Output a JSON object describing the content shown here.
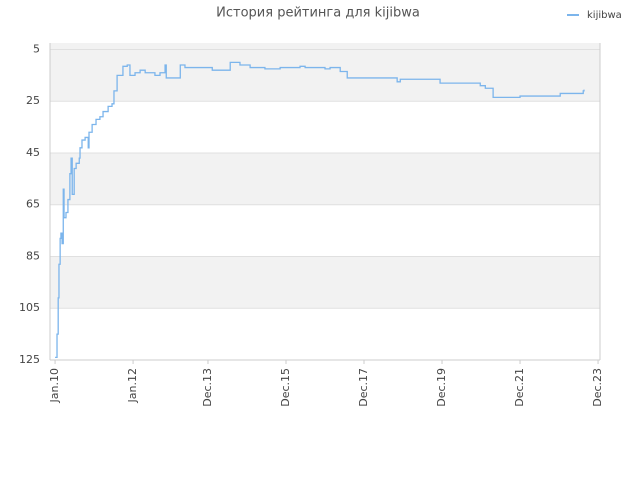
{
  "chart_data": {
    "type": "line",
    "title": "История рейтинга для kijibwa",
    "drawstyle": "steps-post",
    "grid": true,
    "legend": "upper right",
    "x": [
      2010.0,
      2010.05,
      2010.08,
      2010.1,
      2010.13,
      2010.15,
      2010.18,
      2010.21,
      2010.23,
      2010.28,
      2010.33,
      2010.38,
      2010.41,
      2010.44,
      2010.49,
      2010.54,
      2010.62,
      2010.64,
      2010.69,
      2010.77,
      2010.85,
      2010.87,
      2010.95,
      2011.05,
      2011.15,
      2011.23,
      2011.36,
      2011.46,
      2011.51,
      2011.59,
      2011.67,
      2011.74,
      2011.85,
      2011.92,
      2012.05,
      2012.18,
      2012.31,
      2012.56,
      2012.69,
      2012.82,
      2012.85,
      2013.08,
      2013.21,
      2013.33,
      2013.72,
      2014.03,
      2014.36,
      2014.49,
      2014.74,
      2015.0,
      2015.38,
      2015.77,
      2016.28,
      2016.41,
      2016.92,
      2017.05,
      2017.31,
      2017.49,
      2018.72,
      2018.77,
      2018.85,
      2019.74,
      2019.87,
      2020.9,
      2021.03,
      2021.23,
      2021.92,
      2022.95,
      2023.54,
      2023.56
    ],
    "series": [
      {
        "name": "kijibwa",
        "color": "#7cb5ec",
        "values": [
          124,
          115,
          101,
          88,
          78,
          76,
          80,
          59,
          70,
          68,
          63,
          53,
          47,
          61,
          51,
          49,
          47,
          43,
          40,
          39,
          43,
          37,
          34,
          32,
          31,
          29,
          27,
          26,
          21,
          15,
          15,
          11.5,
          11,
          15,
          14,
          13,
          14,
          15,
          14,
          11,
          16,
          16,
          11,
          12,
          12,
          13,
          13,
          10,
          11,
          12,
          12.5,
          12,
          11.5,
          12,
          12.5,
          12,
          13.5,
          16,
          16,
          17.5,
          16.5,
          16.5,
          18,
          19,
          20,
          23.5,
          23,
          22,
          21,
          20.5
        ]
      }
    ],
    "xlim": [
      2009.87,
      2023.97
    ],
    "xticks": [
      {
        "value": 2010.0,
        "label": "Jan.10"
      },
      {
        "value": 2012.0,
        "label": "Jan.12"
      },
      {
        "value": 2013.92,
        "label": "Dec.13"
      },
      {
        "value": 2015.92,
        "label": "Dec.15"
      },
      {
        "value": 2017.92,
        "label": "Dec.17"
      },
      {
        "value": 2019.92,
        "label": "Dec.19"
      },
      {
        "value": 2021.92,
        "label": "Dec.21"
      },
      {
        "value": 2023.92,
        "label": "Dec.23"
      }
    ],
    "ylim": [
      125,
      2.5
    ],
    "yticks": [
      5,
      25,
      45,
      65,
      85,
      105,
      125
    ]
  }
}
